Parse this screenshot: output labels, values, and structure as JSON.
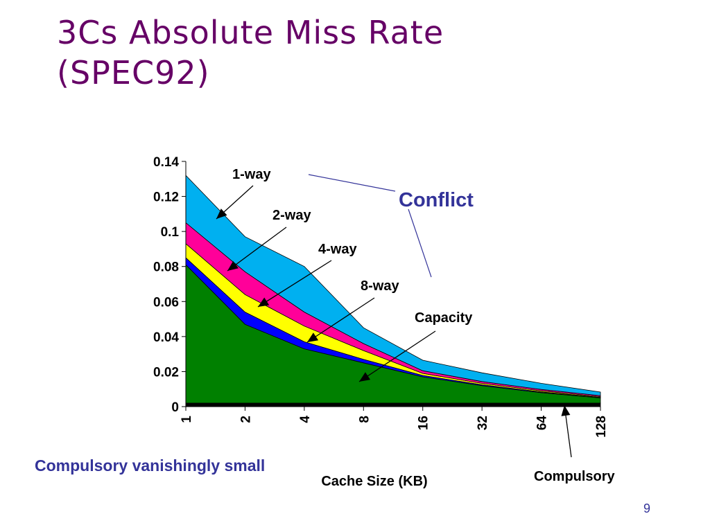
{
  "slide": {
    "title_line1": "3Cs Absolute Miss Rate",
    "title_line2": "(SPEC92)",
    "note": "Compulsory vanishingly small",
    "page_number": "9"
  },
  "chart_data": {
    "type": "area",
    "xlabel": "Cache Size (KB)",
    "ylabel": "",
    "categories": [
      "1",
      "2",
      "4",
      "8",
      "16",
      "32",
      "64",
      "128"
    ],
    "ylim": [
      0,
      0.14
    ],
    "yticks": [
      "0",
      "0.02",
      "0.04",
      "0.06",
      "0.08",
      "0.1",
      "0.12",
      "0.14"
    ],
    "stacked": true,
    "series": [
      {
        "name": "Compulsory",
        "color": "#000000",
        "values": [
          0.002,
          0.002,
          0.002,
          0.002,
          0.002,
          0.002,
          0.002,
          0.002
        ]
      },
      {
        "name": "Capacity",
        "color": "#008000",
        "values": [
          0.079,
          0.045,
          0.031,
          0.023,
          0.015,
          0.01,
          0.006,
          0.003
        ]
      },
      {
        "name": "8-way",
        "color": "#0000ff",
        "values": [
          0.004,
          0.007,
          0.004,
          0.002,
          0.0008,
          0.0005,
          0.0004,
          0.0003
        ]
      },
      {
        "name": "4-way",
        "color": "#ffff00",
        "values": [
          0.008,
          0.01,
          0.009,
          0.005,
          0.0012,
          0.0008,
          0.0006,
          0.0004
        ]
      },
      {
        "name": "2-way",
        "color": "#ff0099",
        "values": [
          0.012,
          0.013,
          0.008,
          0.004,
          0.0015,
          0.001,
          0.0008,
          0.0006
        ]
      },
      {
        "name": "1-way",
        "color": "#00b0f0",
        "values": [
          0.027,
          0.02,
          0.026,
          0.009,
          0.006,
          0.005,
          0.0035,
          0.002
        ]
      }
    ],
    "annotations": {
      "conflict": {
        "text": "Conflict",
        "color": "#333399"
      },
      "labels": [
        "1-way",
        "2-way",
        "4-way",
        "8-way",
        "Capacity",
        "Compulsory"
      ]
    },
    "grid": false,
    "legend": "none"
  }
}
